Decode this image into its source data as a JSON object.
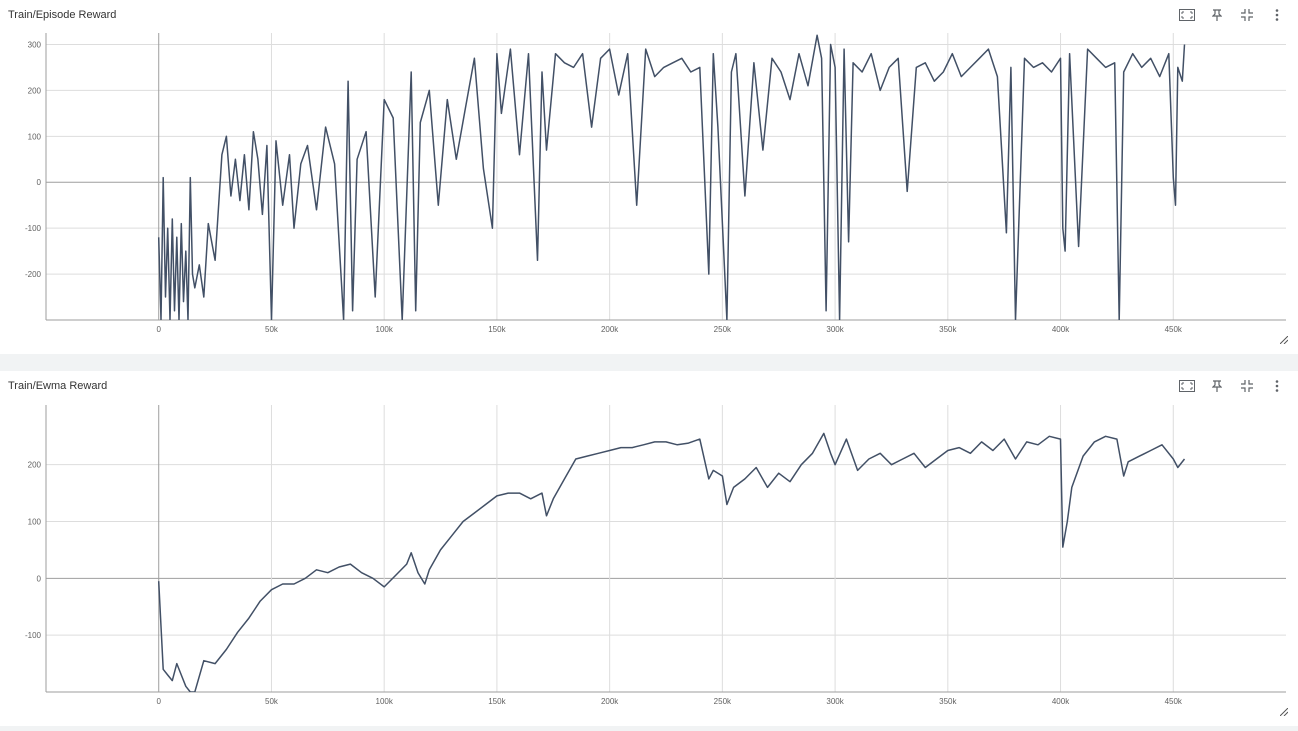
{
  "panels": [
    {
      "title": "Train/Episode Reward",
      "icons": [
        "fit-domain-icon",
        "pin-icon",
        "collapse-icon",
        "more-vert-icon"
      ]
    },
    {
      "title": "Train/Ewma Reward",
      "icons": [
        "fit-domain-icon",
        "pin-icon",
        "collapse-icon",
        "more-vert-icon"
      ]
    }
  ],
  "colors": {
    "series": "#425066",
    "grid": "#dddddd",
    "axis": "#9e9e9e",
    "zero": "#9e9e9e"
  },
  "chart_data": [
    {
      "type": "line",
      "title": "Train/Episode Reward",
      "xlabel": "",
      "ylabel": "",
      "xlim": [
        -50000,
        500000
      ],
      "ylim": [
        -300,
        325
      ],
      "x_ticks": [
        0,
        50000,
        100000,
        150000,
        200000,
        250000,
        300000,
        350000,
        400000,
        450000
      ],
      "x_tick_labels": [
        "0",
        "50k",
        "100k",
        "150k",
        "200k",
        "250k",
        "300k",
        "350k",
        "400k",
        "450k"
      ],
      "y_ticks": [
        -200,
        -100,
        0,
        100,
        200,
        300
      ],
      "y_tick_labels": [
        "-200",
        "-100",
        "0",
        "100",
        "200",
        "300"
      ],
      "grid": true,
      "series": [
        {
          "x": [
            0,
            1000,
            2000,
            3000,
            4000,
            5000,
            6000,
            7000,
            8000,
            9000,
            10000,
            11000,
            12000,
            13000,
            14000,
            15000,
            16000,
            18000,
            20000,
            22000,
            25000,
            28000,
            30000,
            32000,
            34000,
            36000,
            38000,
            40000,
            42000,
            44000,
            46000,
            48000,
            50000,
            52000,
            55000,
            58000,
            60000,
            63000,
            66000,
            70000,
            74000,
            78000,
            82000,
            84000,
            86000,
            88000,
            92000,
            96000,
            100000,
            104000,
            108000,
            112000,
            114000,
            116000,
            120000,
            124000,
            128000,
            132000,
            136000,
            140000,
            144000,
            148000,
            150000,
            152000,
            156000,
            160000,
            164000,
            168000,
            170000,
            172000,
            176000,
            180000,
            184000,
            188000,
            192000,
            196000,
            200000,
            204000,
            208000,
            212000,
            216000,
            220000,
            224000,
            228000,
            232000,
            236000,
            240000,
            244000,
            246000,
            248000,
            252000,
            254000,
            256000,
            260000,
            264000,
            268000,
            272000,
            276000,
            280000,
            284000,
            288000,
            292000,
            294000,
            296000,
            298000,
            300000,
            302000,
            304000,
            306000,
            308000,
            312000,
            316000,
            320000,
            324000,
            328000,
            332000,
            336000,
            340000,
            344000,
            348000,
            352000,
            356000,
            360000,
            364000,
            368000,
            372000,
            376000,
            378000,
            380000,
            384000,
            388000,
            392000,
            396000,
            400000,
            401000,
            402000,
            404000,
            408000,
            412000,
            416000,
            420000,
            424000,
            426000,
            428000,
            432000,
            436000,
            440000,
            444000,
            448000,
            450000,
            451000,
            452000,
            454000,
            455000
          ],
          "y": [
            -120,
            -300,
            10,
            -250,
            -100,
            -300,
            -80,
            -280,
            -120,
            -300,
            -90,
            -260,
            -150,
            -300,
            10,
            -200,
            -230,
            -180,
            -250,
            -90,
            -170,
            60,
            100,
            -30,
            50,
            -40,
            60,
            -60,
            110,
            50,
            -70,
            80,
            -300,
            90,
            -50,
            60,
            -100,
            40,
            80,
            -60,
            120,
            40,
            -300,
            220,
            -280,
            50,
            110,
            -250,
            180,
            140,
            -300,
            240,
            -280,
            130,
            200,
            -50,
            180,
            50,
            160,
            270,
            30,
            -100,
            280,
            150,
            290,
            60,
            280,
            -170,
            240,
            70,
            280,
            260,
            250,
            280,
            120,
            270,
            290,
            190,
            280,
            -50,
            290,
            230,
            250,
            260,
            270,
            240,
            250,
            -200,
            280,
            120,
            -300,
            240,
            280,
            -30,
            260,
            70,
            270,
            240,
            180,
            280,
            210,
            320,
            270,
            -280,
            300,
            250,
            -300,
            290,
            -130,
            260,
            240,
            280,
            200,
            250,
            270,
            -20,
            250,
            260,
            220,
            240,
            280,
            230,
            250,
            270,
            290,
            230,
            -110,
            250,
            -300,
            270,
            250,
            260,
            240,
            270,
            -100,
            -150,
            280,
            -140,
            290,
            270,
            250,
            260,
            -300,
            240,
            280,
            250,
            270,
            230,
            280,
            10,
            -50,
            250,
            220,
            300
          ]
        }
      ]
    },
    {
      "type": "line",
      "title": "Train/Ewma Reward",
      "xlabel": "",
      "ylabel": "",
      "xlim": [
        -50000,
        500000
      ],
      "ylim": [
        -200,
        305
      ],
      "x_ticks": [
        0,
        50000,
        100000,
        150000,
        200000,
        250000,
        300000,
        350000,
        400000,
        450000
      ],
      "x_tick_labels": [
        "0",
        "50k",
        "100k",
        "150k",
        "200k",
        "250k",
        "300k",
        "350k",
        "400k",
        "450k"
      ],
      "y_ticks": [
        -100,
        0,
        100,
        200
      ],
      "y_tick_labels": [
        "-100",
        "0",
        "100",
        "200"
      ],
      "grid": true,
      "series": [
        {
          "x": [
            0,
            2000,
            4000,
            6000,
            8000,
            10000,
            12000,
            14000,
            16000,
            20000,
            25000,
            30000,
            35000,
            40000,
            45000,
            50000,
            55000,
            60000,
            65000,
            70000,
            75000,
            80000,
            85000,
            90000,
            95000,
            100000,
            105000,
            110000,
            112000,
            115000,
            118000,
            120000,
            125000,
            130000,
            135000,
            140000,
            145000,
            150000,
            155000,
            160000,
            165000,
            170000,
            172000,
            175000,
            180000,
            185000,
            190000,
            195000,
            200000,
            205000,
            210000,
            215000,
            220000,
            225000,
            230000,
            235000,
            240000,
            244000,
            246000,
            250000,
            252000,
            255000,
            260000,
            265000,
            270000,
            275000,
            280000,
            285000,
            290000,
            295000,
            298000,
            300000,
            305000,
            310000,
            315000,
            320000,
            325000,
            330000,
            335000,
            340000,
            345000,
            350000,
            355000,
            360000,
            365000,
            370000,
            375000,
            380000,
            385000,
            390000,
            395000,
            400000,
            401000,
            403000,
            405000,
            410000,
            415000,
            420000,
            425000,
            428000,
            430000,
            435000,
            440000,
            445000,
            450000,
            452000,
            455000
          ],
          "y": [
            -5,
            -160,
            -170,
            -180,
            -150,
            -170,
            -190,
            -220,
            -200,
            -145,
            -150,
            -125,
            -95,
            -70,
            -40,
            -20,
            -10,
            -10,
            0,
            15,
            10,
            20,
            25,
            10,
            0,
            -15,
            5,
            25,
            45,
            10,
            -10,
            15,
            50,
            75,
            100,
            115,
            130,
            145,
            150,
            150,
            140,
            150,
            110,
            140,
            175,
            210,
            215,
            220,
            225,
            230,
            230,
            235,
            240,
            240,
            235,
            238,
            245,
            175,
            190,
            180,
            130,
            160,
            175,
            195,
            160,
            185,
            170,
            200,
            220,
            255,
            220,
            200,
            245,
            190,
            210,
            220,
            200,
            210,
            220,
            195,
            210,
            225,
            230,
            220,
            240,
            225,
            245,
            210,
            240,
            235,
            250,
            245,
            55,
            100,
            160,
            215,
            240,
            250,
            245,
            180,
            205,
            215,
            225,
            235,
            210,
            195,
            210
          ]
        }
      ]
    }
  ]
}
